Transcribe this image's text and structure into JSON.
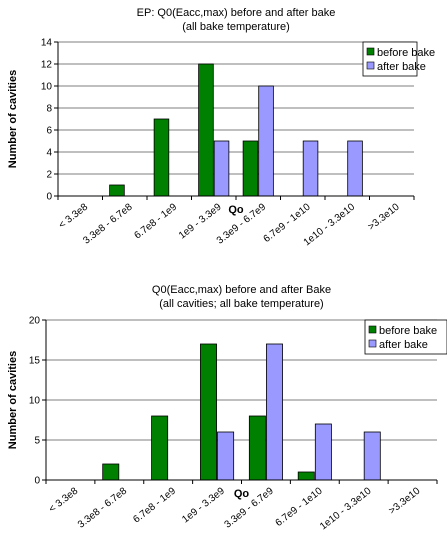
{
  "chart_data": [
    {
      "type": "bar",
      "title": "EP: Q0(Eacc,max) before and after bake",
      "subtitle": "(all bake temperature)",
      "xlabel": "Qo",
      "ylabel": "Number of cavities",
      "ylim": [
        0,
        14
      ],
      "yticks": [
        0,
        2,
        4,
        6,
        8,
        10,
        12,
        14
      ],
      "grid": true,
      "legend_position": "top-right",
      "categories": [
        "< 3.3e8",
        "3.3e8 - 6.7e8",
        "6.7e8 - 1e9",
        "1e9 - 3.3e9",
        "3.3e9 - 6.7e9",
        "6.7e9 - 1e10",
        "1e10 - 3.3e10",
        ">3.3e10"
      ],
      "series": [
        {
          "name": "before bake",
          "color": "#008000",
          "values": [
            0,
            1,
            7,
            12,
            5,
            0,
            0,
            0
          ]
        },
        {
          "name": "after bake",
          "color": "#9999ff",
          "values": [
            0,
            0,
            0,
            5,
            10,
            5,
            5,
            0
          ]
        }
      ]
    },
    {
      "type": "bar",
      "title": "Q0(Eacc,max) before and after Bake",
      "subtitle": "(all cavities; all bake temperature)",
      "xlabel": "Qo",
      "ylabel": "Number of cavities",
      "ylim": [
        0,
        20
      ],
      "yticks": [
        0,
        5,
        10,
        15,
        20
      ],
      "grid": true,
      "legend_position": "top-right",
      "categories": [
        "< 3.3e8",
        "3.3e8 - 6.7e8",
        "6.7e8 - 1e9",
        "1e9 - 3.3e9",
        "3.3e9 - 6.7e9",
        "6.7e9 - 1e10",
        "1e10 - 3.3e10",
        ">3.3e10"
      ],
      "series": [
        {
          "name": "before bake",
          "color": "#008000",
          "values": [
            0,
            2,
            8,
            17,
            8,
            1,
            0,
            0
          ]
        },
        {
          "name": "after bake",
          "color": "#9999ff",
          "values": [
            0,
            0,
            0,
            6,
            17,
            7,
            6,
            0
          ]
        }
      ]
    }
  ]
}
